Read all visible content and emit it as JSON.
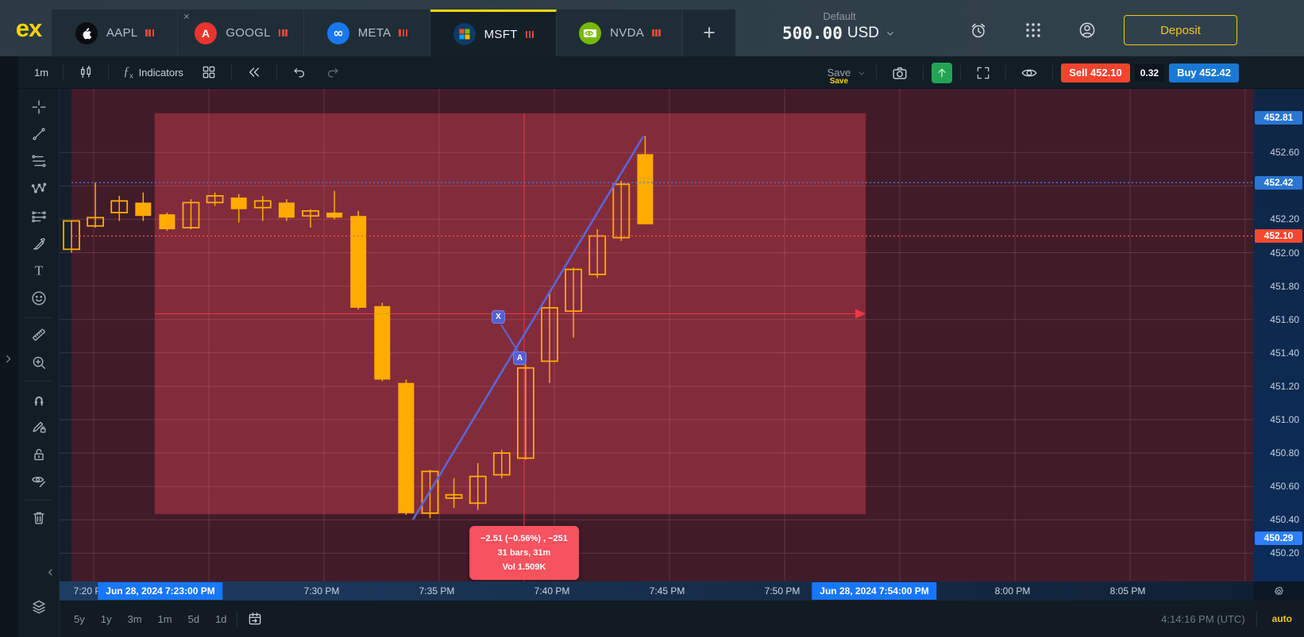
{
  "brand": {
    "logo": "ex",
    "accent": "#ffd20a"
  },
  "tabs": {
    "items": [
      {
        "symbol": "AAPL",
        "icon": "apple-logo",
        "active": false,
        "closable": false
      },
      {
        "symbol": "GOOGL",
        "icon": "alphabet-logo",
        "active": false,
        "closable": true
      },
      {
        "symbol": "META",
        "icon": "meta-logo",
        "active": false,
        "closable": false
      },
      {
        "symbol": "MSFT",
        "icon": "microsoft-logo",
        "active": true,
        "closable": false
      },
      {
        "symbol": "NVDA",
        "icon": "nvidia-logo",
        "active": false,
        "closable": false
      }
    ],
    "add_label": "+"
  },
  "account": {
    "profile_label": "Default",
    "balance": "500.00",
    "currency": "USD"
  },
  "topbar": {
    "deposit_label": "Deposit"
  },
  "toolbar": {
    "timeframe": "1m",
    "indicators_label": "Indicators",
    "save_label": "Save",
    "save_tooltip": "Save",
    "sell_label": "Sell 452.10",
    "spread": "0.32",
    "buy_label": "Buy 452.42"
  },
  "side_tools": [
    {
      "name": "crosshair",
      "active": true
    },
    {
      "name": "trend-line",
      "active": false
    },
    {
      "name": "fib-lines",
      "active": false
    },
    {
      "name": "xabcd-pattern",
      "active": false
    },
    {
      "name": "forecast-lines",
      "active": false
    },
    {
      "name": "brush",
      "active": false
    },
    {
      "name": "text",
      "active": false
    },
    {
      "name": "emoji",
      "active": false
    },
    {
      "name": "measure",
      "active": false
    },
    {
      "name": "zoom-in",
      "active": false
    },
    {
      "name": "magnet",
      "active": true
    },
    {
      "name": "drawing-lock",
      "active": false
    },
    {
      "name": "lock-all",
      "active": false
    },
    {
      "name": "hide-drawings",
      "active": false
    },
    {
      "name": "trash",
      "active": false
    },
    {
      "name": "object-tree",
      "active": false
    }
  ],
  "chart": {
    "price_axis": {
      "labels": [
        {
          "value": "452.81",
          "badge": "blue"
        },
        {
          "value": "452.60"
        },
        {
          "value": "452.42",
          "badge": "blue"
        },
        {
          "value": "452.20"
        },
        {
          "value": "452.10",
          "badge": "red"
        },
        {
          "value": "452.00"
        },
        {
          "value": "451.80"
        },
        {
          "value": "451.60"
        },
        {
          "value": "451.40"
        },
        {
          "value": "451.20"
        },
        {
          "value": "451.00"
        },
        {
          "value": "450.80"
        },
        {
          "value": "450.60"
        },
        {
          "value": "450.40"
        },
        {
          "value": "450.29",
          "badge": "bright"
        },
        {
          "value": "450.20"
        }
      ]
    },
    "time_axis": {
      "labels": [
        {
          "text": "7:20 PM",
          "m": 0
        },
        {
          "text": "7:30 PM",
          "m": 10
        },
        {
          "text": "7:35 PM",
          "m": 15
        },
        {
          "text": "7:40 PM",
          "m": 20
        },
        {
          "text": "7:45 PM",
          "m": 25
        },
        {
          "text": "7:50 PM",
          "m": 30
        },
        {
          "text": "8:00 PM",
          "m": 40
        },
        {
          "text": "8:05 PM",
          "m": 45
        }
      ],
      "badges": [
        {
          "text": "Jun 28, 2024   7:23:00 PM",
          "m": 3
        },
        {
          "text": "Jun 28, 2024   7:54:00 PM",
          "m": 34
        }
      ]
    },
    "markers": {
      "x": "X",
      "a": "A"
    },
    "tooltip": {
      "line1": "−2.51 (−0.56%) , −251",
      "line2": "31 bars, 31m",
      "line3": "Vol 1.509K"
    },
    "chart_data": {
      "type": "candlestick",
      "symbol": "MSFT",
      "interval": "1m",
      "price_range": [
        450.2,
        452.81
      ],
      "current_buy_price": 452.42,
      "current_sell_price": 452.1,
      "spread": 0.32,
      "high_badge": 452.81,
      "low_badge": 450.29,
      "measurement": {
        "change": -2.51,
        "change_pct": "-0.56%",
        "points": -251,
        "bars": 31,
        "duration": "31m",
        "volume": "1.509K",
        "from": "7:23 PM",
        "to": "7:54 PM"
      },
      "candles": [
        {
          "t": "7:20",
          "o": 452.02,
          "h": 452.19,
          "l": 452.0,
          "c": 452.19
        },
        {
          "t": "7:21",
          "o": 452.16,
          "h": 452.42,
          "l": 452.15,
          "c": 452.21
        },
        {
          "t": "7:22",
          "o": 452.24,
          "h": 452.34,
          "l": 452.19,
          "c": 452.31
        },
        {
          "t": "7:23",
          "o": 452.3,
          "h": 452.36,
          "l": 452.19,
          "c": 452.22
        },
        {
          "t": "7:24",
          "o": 452.23,
          "h": 452.24,
          "l": 452.13,
          "c": 452.14
        },
        {
          "t": "7:25",
          "o": 452.15,
          "h": 452.32,
          "l": 452.14,
          "c": 452.3
        },
        {
          "t": "7:26",
          "o": 452.3,
          "h": 452.36,
          "l": 452.28,
          "c": 452.34
        },
        {
          "t": "7:27",
          "o": 452.33,
          "h": 452.35,
          "l": 452.18,
          "c": 452.26
        },
        {
          "t": "7:28",
          "o": 452.27,
          "h": 452.34,
          "l": 452.19,
          "c": 452.31
        },
        {
          "t": "7:29",
          "o": 452.3,
          "h": 452.32,
          "l": 452.19,
          "c": 452.21
        },
        {
          "t": "7:30",
          "o": 452.22,
          "h": 452.26,
          "l": 452.15,
          "c": 452.25
        },
        {
          "t": "7:31",
          "o": 452.24,
          "h": 452.37,
          "l": 452.2,
          "c": 452.21
        },
        {
          "t": "7:32",
          "o": 452.22,
          "h": 452.25,
          "l": 451.66,
          "c": 451.67
        },
        {
          "t": "7:33",
          "o": 451.68,
          "h": 451.7,
          "l": 451.23,
          "c": 451.24
        },
        {
          "t": "7:34",
          "o": 451.22,
          "h": 451.24,
          "l": 450.43,
          "c": 450.44
        },
        {
          "t": "7:35",
          "o": 450.44,
          "h": 450.7,
          "l": 450.41,
          "c": 450.69
        },
        {
          "t": "7:36",
          "o": 450.53,
          "h": 450.65,
          "l": 450.47,
          "c": 450.55
        },
        {
          "t": "7:37",
          "o": 450.5,
          "h": 450.74,
          "l": 450.46,
          "c": 450.66
        },
        {
          "t": "7:38",
          "o": 450.67,
          "h": 450.82,
          "l": 450.65,
          "c": 450.8
        },
        {
          "t": "7:39",
          "o": 450.77,
          "h": 451.33,
          "l": 450.76,
          "c": 451.31
        },
        {
          "t": "7:40",
          "o": 451.35,
          "h": 451.76,
          "l": 451.22,
          "c": 451.67
        },
        {
          "t": "7:41",
          "o": 451.65,
          "h": 451.91,
          "l": 451.49,
          "c": 451.9
        },
        {
          "t": "7:42",
          "o": 451.87,
          "h": 452.14,
          "l": 451.85,
          "c": 452.1
        },
        {
          "t": "7:43",
          "o": 452.09,
          "h": 452.43,
          "l": 452.07,
          "c": 452.41
        },
        {
          "t": "7:44",
          "o": 452.59,
          "h": 452.7,
          "l": 452.17,
          "c": 452.17
        }
      ]
    }
  },
  "colors": {
    "candle": "#ffab00",
    "measure_red": "#f23645",
    "trend_blue": "#5b66d9",
    "buy_line_blue": "#3c83f6",
    "sell_line_red": "#ff5347"
  },
  "bottom_bar": {
    "ranges": [
      "5y",
      "1y",
      "3m",
      "1m",
      "5d",
      "1d"
    ],
    "clock": "4:14:16 PM (UTC)",
    "mode": "auto"
  }
}
